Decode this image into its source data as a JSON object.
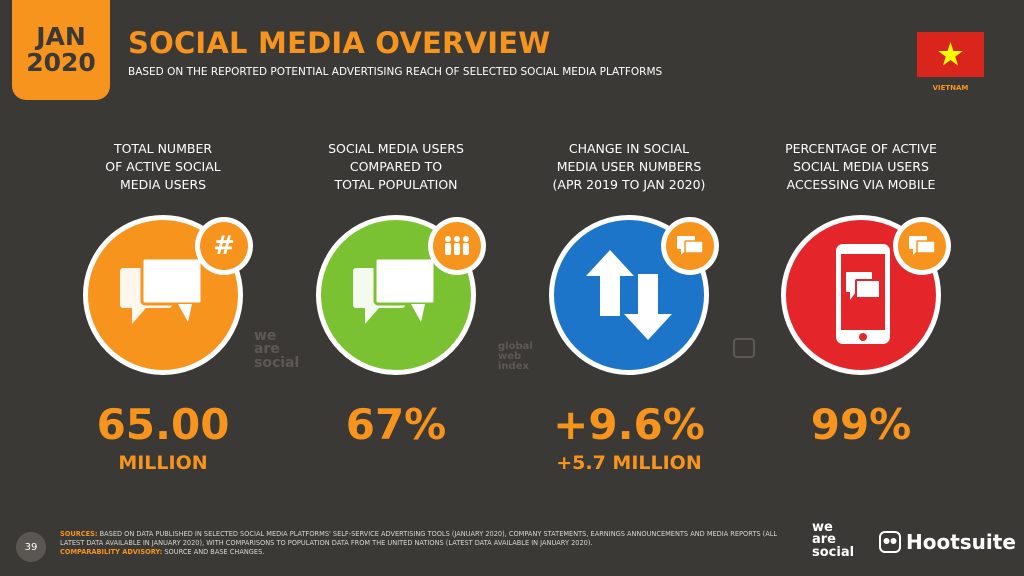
{
  "header": {
    "month": "JAN",
    "year": "2020",
    "title": "SOCIAL MEDIA OVERVIEW",
    "subtitle": "BASED ON THE REPORTED POTENTIAL ADVERTISING REACH OF SELECTED SOCIAL MEDIA PLATFORMS",
    "country": "VIETNAM"
  },
  "colors": {
    "background": "#3b3936",
    "accent": "#f7941d",
    "orange": "#f7941d",
    "green": "#7ac231",
    "blue": "#1c75c9",
    "red": "#e4262a"
  },
  "metrics": [
    {
      "label": "TOTAL NUMBER\nOF ACTIVE SOCIAL\nMEDIA USERS",
      "value": "65.00",
      "sub": "MILLION",
      "icon": "chat-bubbles-icon",
      "badge_icon": "hashtag-icon"
    },
    {
      "label": "SOCIAL MEDIA USERS\nCOMPARED TO\nTOTAL POPULATION",
      "value": "67%",
      "sub": "",
      "icon": "chat-bubbles-icon",
      "badge_icon": "people-icon"
    },
    {
      "label": "CHANGE IN SOCIAL\nMEDIA USER NUMBERS\n(APR 2019 TO JAN 2020)",
      "value": "+9.6%",
      "sub": "+5.7 MILLION",
      "icon": "up-down-arrows-icon",
      "badge_icon": "chat-icon"
    },
    {
      "label": "PERCENTAGE OF ACTIVE\nSOCIAL MEDIA USERS\nACCESSING VIA MOBILE",
      "value": "99%",
      "sub": "",
      "icon": "mobile-phone-icon",
      "badge_icon": "chat-icon"
    }
  ],
  "watermarks": {
    "we_are_social": "we\nare\nsocial",
    "global_web_index": "global\nweb\nindex"
  },
  "footer": {
    "page_number": "39",
    "sources_label": "SOURCES:",
    "sources_text": "BASED ON DATA PUBLISHED IN SELECTED SOCIAL MEDIA PLATFORMS' SELF-SERVICE ADVERTISING TOOLS (JANUARY 2020), COMPANY STATEMENTS, EARNINGS ANNOUNCEMENTS AND MEDIA REPORTS (ALL LATEST DATA AVAILABLE IN JANUARY 2020), WITH COMPARISONS TO POPULATION DATA FROM THE UNITED NATIONS (LATEST DATA AVAILABLE IN JANUARY 2020).",
    "advisory_label": "COMPARABILITY ADVISORY:",
    "advisory_text": "SOURCE AND BASE CHANGES.",
    "logo_we_are_social": "we\nare\nsocial",
    "logo_hootsuite": "Hootsuite"
  }
}
